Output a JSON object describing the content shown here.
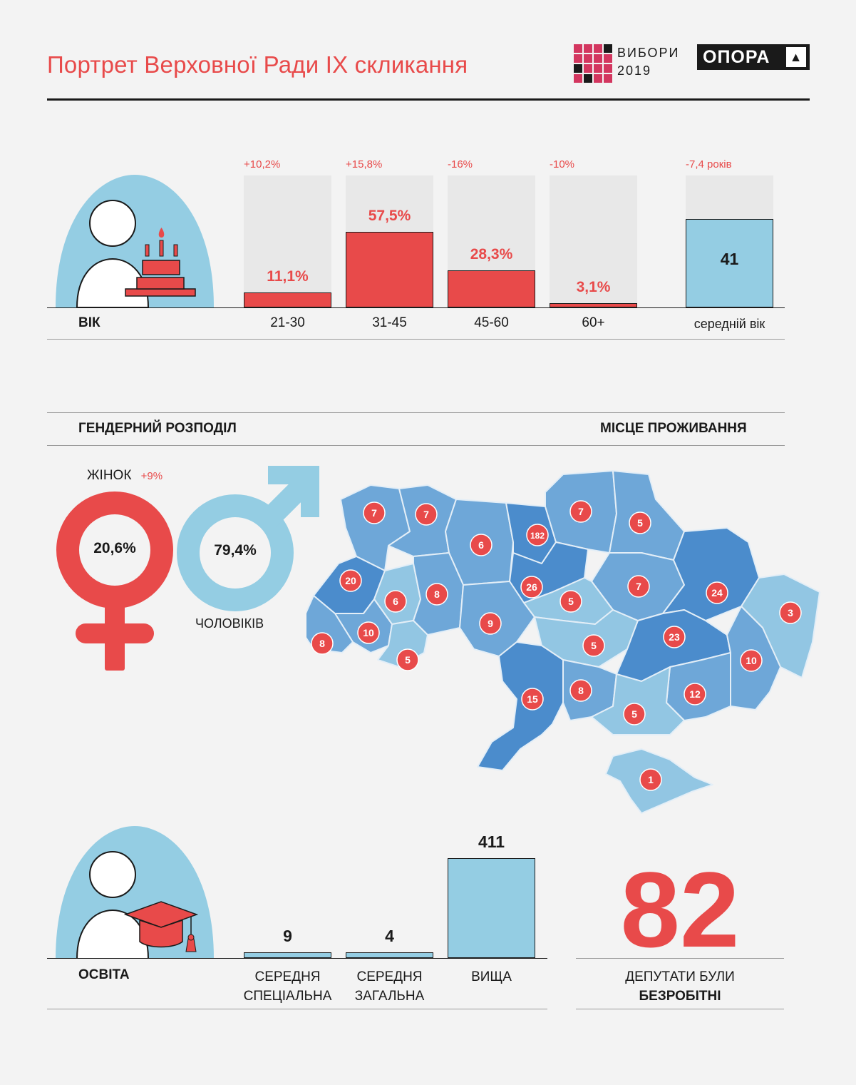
{
  "header": {
    "title": "Портрет Верховної Ради IX скликання",
    "vybory_line1": "ВИБОРИ",
    "vybory_line2": "2019",
    "opora": "ОПОРА",
    "opora_symbol": "▲"
  },
  "colors": {
    "accent_red": "#e84a4a",
    "light_blue": "#94cde3",
    "bar_background": "#e8e8e8",
    "map_dark": "#4b8ccc",
    "map_mid": "#6ea7d8",
    "map_light": "#92c6e3"
  },
  "age": {
    "section_label": "ВІК",
    "icon": "person-with-cake-icon",
    "groups": [
      {
        "category": "21-30",
        "value_label": "11,1%",
        "value": 11.1,
        "change": "+10,2%"
      },
      {
        "category": "31-45",
        "value_label": "57,5%",
        "value": 57.5,
        "change": "+15,8%"
      },
      {
        "category": "45-60",
        "value_label": "28,3%",
        "value": 28.3,
        "change": "-16%"
      },
      {
        "category": "60+",
        "value_label": "3,1%",
        "value": 3.1,
        "change": "-10%"
      }
    ],
    "average": {
      "category": "середній вік",
      "value": "41",
      "change": "-7,4 років"
    }
  },
  "gender": {
    "section_label": "ГЕНДЕРНИЙ РОЗПОДІЛ",
    "women_label": "ЖІНОК",
    "women_change": "+9%",
    "women_value": "20,6%",
    "men_label": "ЧОЛОВІКІВ",
    "men_value": "79,4%"
  },
  "residence": {
    "section_label": "МІСЦЕ ПРОЖИВАННЯ",
    "regions": [
      {
        "value": "7"
      },
      {
        "value": "7"
      },
      {
        "value": "6"
      },
      {
        "value": "182"
      },
      {
        "value": "7"
      },
      {
        "value": "5"
      },
      {
        "value": "20"
      },
      {
        "value": "6"
      },
      {
        "value": "8"
      },
      {
        "value": "26"
      },
      {
        "value": "5"
      },
      {
        "value": "7"
      },
      {
        "value": "24"
      },
      {
        "value": "3"
      },
      {
        "value": "9"
      },
      {
        "value": "8"
      },
      {
        "value": "10"
      },
      {
        "value": "5"
      },
      {
        "value": "5"
      },
      {
        "value": "23"
      },
      {
        "value": "10"
      },
      {
        "value": "15"
      },
      {
        "value": "8"
      },
      {
        "value": "12"
      },
      {
        "value": "5"
      },
      {
        "value": "1"
      }
    ]
  },
  "education": {
    "section_label": "ОСВІТА",
    "icon": "person-with-graduation-cap-icon",
    "levels": [
      {
        "line1": "СЕРЕДНЯ",
        "line2": "СПЕЦІАЛЬНА",
        "value": 9
      },
      {
        "line1": "СЕРЕДНЯ",
        "line2": "ЗАГАЛЬНА",
        "value": 4
      },
      {
        "line1": "ВИЩА",
        "line2": "",
        "value": 411
      }
    ]
  },
  "unemployed": {
    "value": "82",
    "line1": "ДЕПУТАТИ БУЛИ",
    "line2": "БЕЗРОБІТНІ"
  }
}
